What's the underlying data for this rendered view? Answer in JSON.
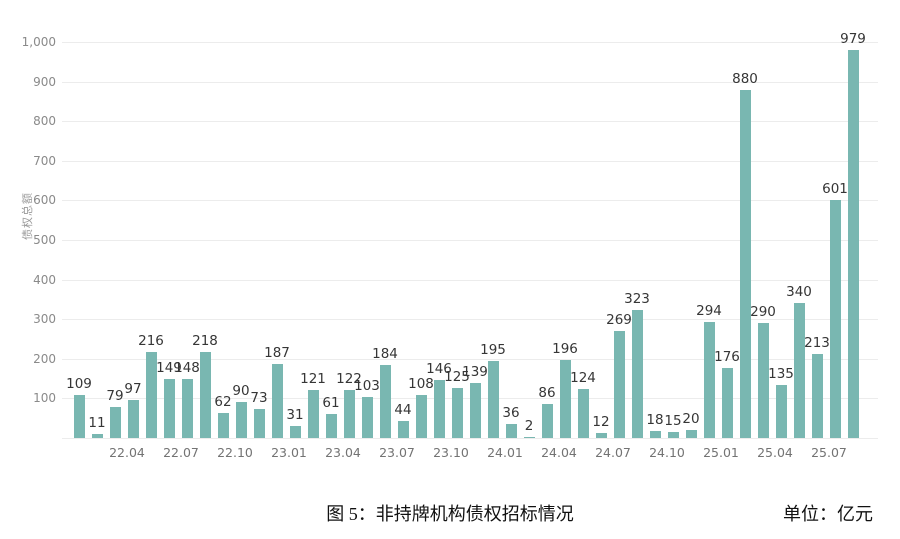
{
  "figure": {
    "caption": "图 5：非持牌机构债权招标情况",
    "unit_label": "单位：亿元"
  },
  "chart_data": {
    "type": "bar",
    "title": "图 5：非持牌机构债权招标情况",
    "ylabel": "债权总额",
    "unit": "亿元",
    "values": [
      109,
      11,
      79,
      97,
      216,
      149,
      148,
      218,
      62,
      90,
      73,
      187,
      31,
      121,
      61,
      122,
      103,
      184,
      44,
      108,
      146,
      125,
      139,
      195,
      36,
      2,
      86,
      196,
      124,
      12,
      269,
      323,
      18,
      15,
      20,
      294,
      176,
      880,
      290,
      135,
      340,
      213,
      601,
      979
    ],
    "bar_labels": [
      "109",
      "11",
      "79",
      "97",
      "216",
      "149",
      "148",
      "218",
      "62",
      "90",
      "73",
      "187",
      "31",
      "121",
      "61",
      "122",
      "103",
      "184",
      "44",
      "108",
      "146",
      "125",
      "139",
      "195",
      "36",
      "2",
      "86",
      "196",
      "124",
      "12",
      "269",
      "323",
      "18",
      "15",
      "20",
      "294",
      "176",
      "880",
      "290",
      "135",
      "340",
      "213",
      "601",
      "979"
    ],
    "x_tick_labels": [
      "22.04",
      "22.07",
      "22.10",
      "23.01",
      "23.04",
      "23.07",
      "23.10",
      "24.01",
      "24.04",
      "24.07",
      "24.10",
      "25.01",
      "25.04",
      "25.07"
    ],
    "x_tick_bar_indices": [
      3,
      6,
      9,
      12,
      15,
      18,
      21,
      24,
      27,
      30,
      33,
      36,
      39,
      42
    ],
    "y_tick_labels": [
      "1,000",
      "900",
      "800",
      "700",
      "600",
      "500",
      "400",
      "300",
      "200",
      "100"
    ],
    "y_tick_values": [
      1000,
      900,
      800,
      700,
      600,
      500,
      400,
      300,
      200,
      100
    ],
    "ylim": [
      0,
      1000
    ],
    "grid": true,
    "legend": null,
    "style": {
      "bar_color": "#79b7b1",
      "grid_color": "#ececec",
      "value_label_color": "#363636",
      "y_tick_color": "#8a8a8a",
      "x_tick_color": "#737373",
      "background": "#ffffff"
    }
  }
}
